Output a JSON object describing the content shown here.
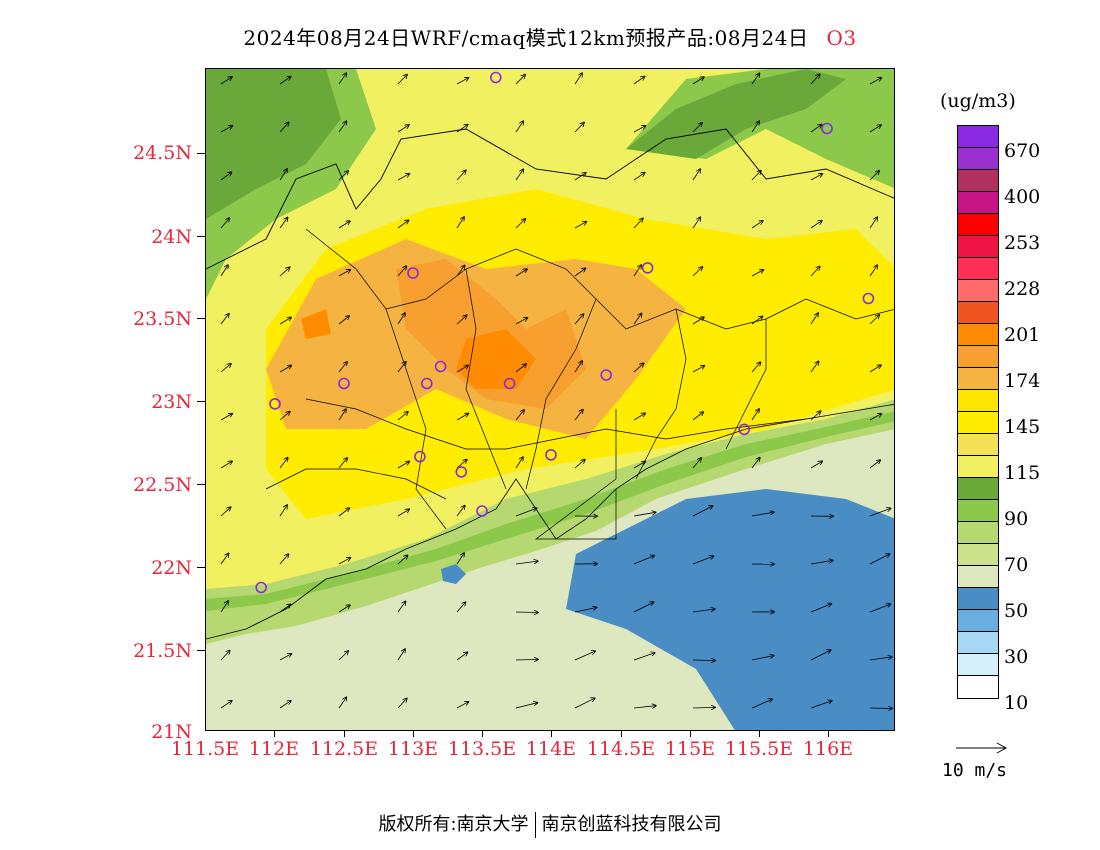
{
  "title": {
    "text": "2024年08月24日WRF/cmaq模式12km预报产品:08月24日",
    "species": "O3"
  },
  "axes": {
    "y_ticks": [
      "24.5N",
      "24N",
      "23.5N",
      "23N",
      "22.5N",
      "22N",
      "21.5N",
      "21N"
    ],
    "x_ticks": [
      "111.5E",
      "112E",
      "112.5E",
      "113E",
      "113.5E",
      "114E",
      "114.5E",
      "115E",
      "115.5E",
      "116E"
    ]
  },
  "colorbar": {
    "unit": "(ug/m3)",
    "colors": [
      "#8a2be2",
      "#9b30d0",
      "#b03060",
      "#c71585",
      "#ff0000",
      "#f01445",
      "#ff2e56",
      "#ff6a6a",
      "#ee5522",
      "#ff8c00",
      "#f7a030",
      "#f5b341",
      "#ffe400",
      "#ffec00",
      "#f5e05a",
      "#f0f060",
      "#6aa83a",
      "#8cc84a",
      "#b5d970",
      "#cde18c",
      "#dde8c0",
      "#4a8cc4",
      "#6aaee0",
      "#a6d8f5",
      "#d6f0fb",
      "#ffffff"
    ],
    "labels": [
      "670",
      "400",
      "253",
      "228",
      "201",
      "174",
      "145",
      "115",
      "90",
      "70",
      "50",
      "30",
      "10"
    ]
  },
  "reference_vector": {
    "label": "10 m/s"
  },
  "footer": {
    "left": "版权所有:南京大学",
    "right": "南京创蓝科技有限公司"
  },
  "map": {
    "lon_range": [
      111.5,
      116.5
    ],
    "lat_range": [
      21.0,
      24.9
    ],
    "stations": [
      {
        "lon": 113.6,
        "lat": 24.85
      },
      {
        "lon": 116.0,
        "lat": 24.55
      },
      {
        "lon": 113.0,
        "lat": 23.7
      },
      {
        "lon": 114.7,
        "lat": 23.73
      },
      {
        "lon": 116.3,
        "lat": 23.55
      },
      {
        "lon": 113.2,
        "lat": 23.15
      },
      {
        "lon": 112.5,
        "lat": 23.05
      },
      {
        "lon": 113.1,
        "lat": 23.05
      },
      {
        "lon": 113.7,
        "lat": 23.05
      },
      {
        "lon": 114.4,
        "lat": 23.1
      },
      {
        "lon": 112.0,
        "lat": 22.93
      },
      {
        "lon": 115.4,
        "lat": 22.78
      },
      {
        "lon": 113.05,
        "lat": 22.62
      },
      {
        "lon": 113.35,
        "lat": 22.53
      },
      {
        "lon": 114.0,
        "lat": 22.63
      },
      {
        "lon": 113.5,
        "lat": 22.3
      },
      {
        "lon": 111.9,
        "lat": 21.85
      }
    ]
  }
}
